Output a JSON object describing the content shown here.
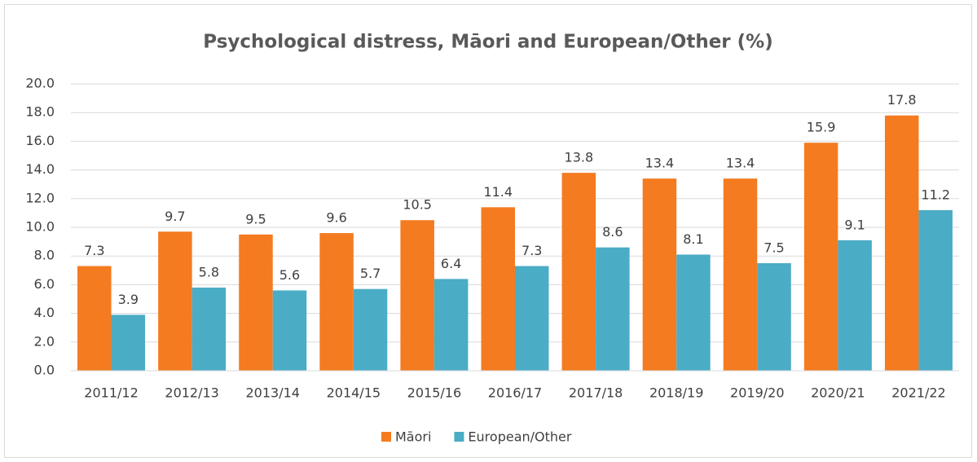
{
  "chart_data": {
    "type": "bar",
    "title": "Psychological distress, Māori and European/Other (%)",
    "categories": [
      "2011/12",
      "2012/13",
      "2013/14",
      "2014/15",
      "2015/16",
      "2016/17",
      "2017/18",
      "2018/19",
      "2019/20",
      "2020/21",
      "2021/22"
    ],
    "series": [
      {
        "name": "Māori",
        "color": "#f47b20",
        "values": [
          7.3,
          9.7,
          9.5,
          9.6,
          10.5,
          11.4,
          13.8,
          13.4,
          13.4,
          15.9,
          17.8
        ]
      },
      {
        "name": "European/Other",
        "color": "#4bacc6",
        "values": [
          3.9,
          5.8,
          5.6,
          5.7,
          6.4,
          7.3,
          8.6,
          8.1,
          7.5,
          9.1,
          11.2
        ]
      }
    ],
    "ylim": [
      0,
      20
    ],
    "yticks": [
      {
        "value": 0,
        "label": "0.0"
      },
      {
        "value": 2,
        "label": "2.0"
      },
      {
        "value": 4,
        "label": "4.0"
      },
      {
        "value": 6,
        "label": "6.0"
      },
      {
        "value": 8,
        "label": "8.0"
      },
      {
        "value": 10,
        "label": "10.0"
      },
      {
        "value": 12,
        "label": "12.0"
      },
      {
        "value": 14,
        "label": "14.0"
      },
      {
        "value": 16,
        "label": "16.0"
      },
      {
        "value": 18,
        "label": "18.0"
      },
      {
        "value": 20,
        "label": "20.0"
      }
    ],
    "grid": true,
    "legend": "bottom"
  }
}
